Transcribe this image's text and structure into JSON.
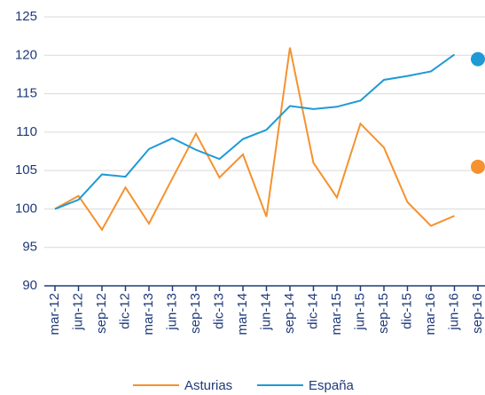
{
  "chart_data": {
    "type": "line",
    "categories": [
      "mar-12",
      "jun-12",
      "sep-12",
      "dic-12",
      "mar-13",
      "jun-13",
      "sep-13",
      "dic-13",
      "mar-14",
      "jun-14",
      "sep-14",
      "dic-14",
      "mar-15",
      "jun-15",
      "sep-15",
      "dic-15",
      "mar-16",
      "jun-16",
      "sep-16"
    ],
    "series": [
      {
        "name": "Asturias",
        "color": "#f5922f",
        "values": [
          100,
          101.7,
          97.3,
          102.8,
          98.1,
          104,
          109.8,
          104.1,
          107.1,
          99,
          121,
          106,
          101.5,
          111.1,
          108,
          100.9,
          97.8,
          99.1,
          null
        ],
        "marker": 105.5
      },
      {
        "name": "España",
        "color": "#1e9ad6",
        "values": [
          100,
          101.2,
          104.5,
          104.2,
          107.8,
          109.2,
          107.7,
          106.5,
          109.1,
          110.3,
          113.4,
          113,
          113.3,
          114.1,
          116.8,
          117.3,
          117.9,
          120.1,
          null
        ],
        "marker": 119.5
      }
    ],
    "ylim": [
      90,
      125
    ],
    "yticks": [
      90,
      95,
      100,
      105,
      110,
      115,
      120,
      125
    ],
    "grid": true,
    "legend": "bottom"
  }
}
